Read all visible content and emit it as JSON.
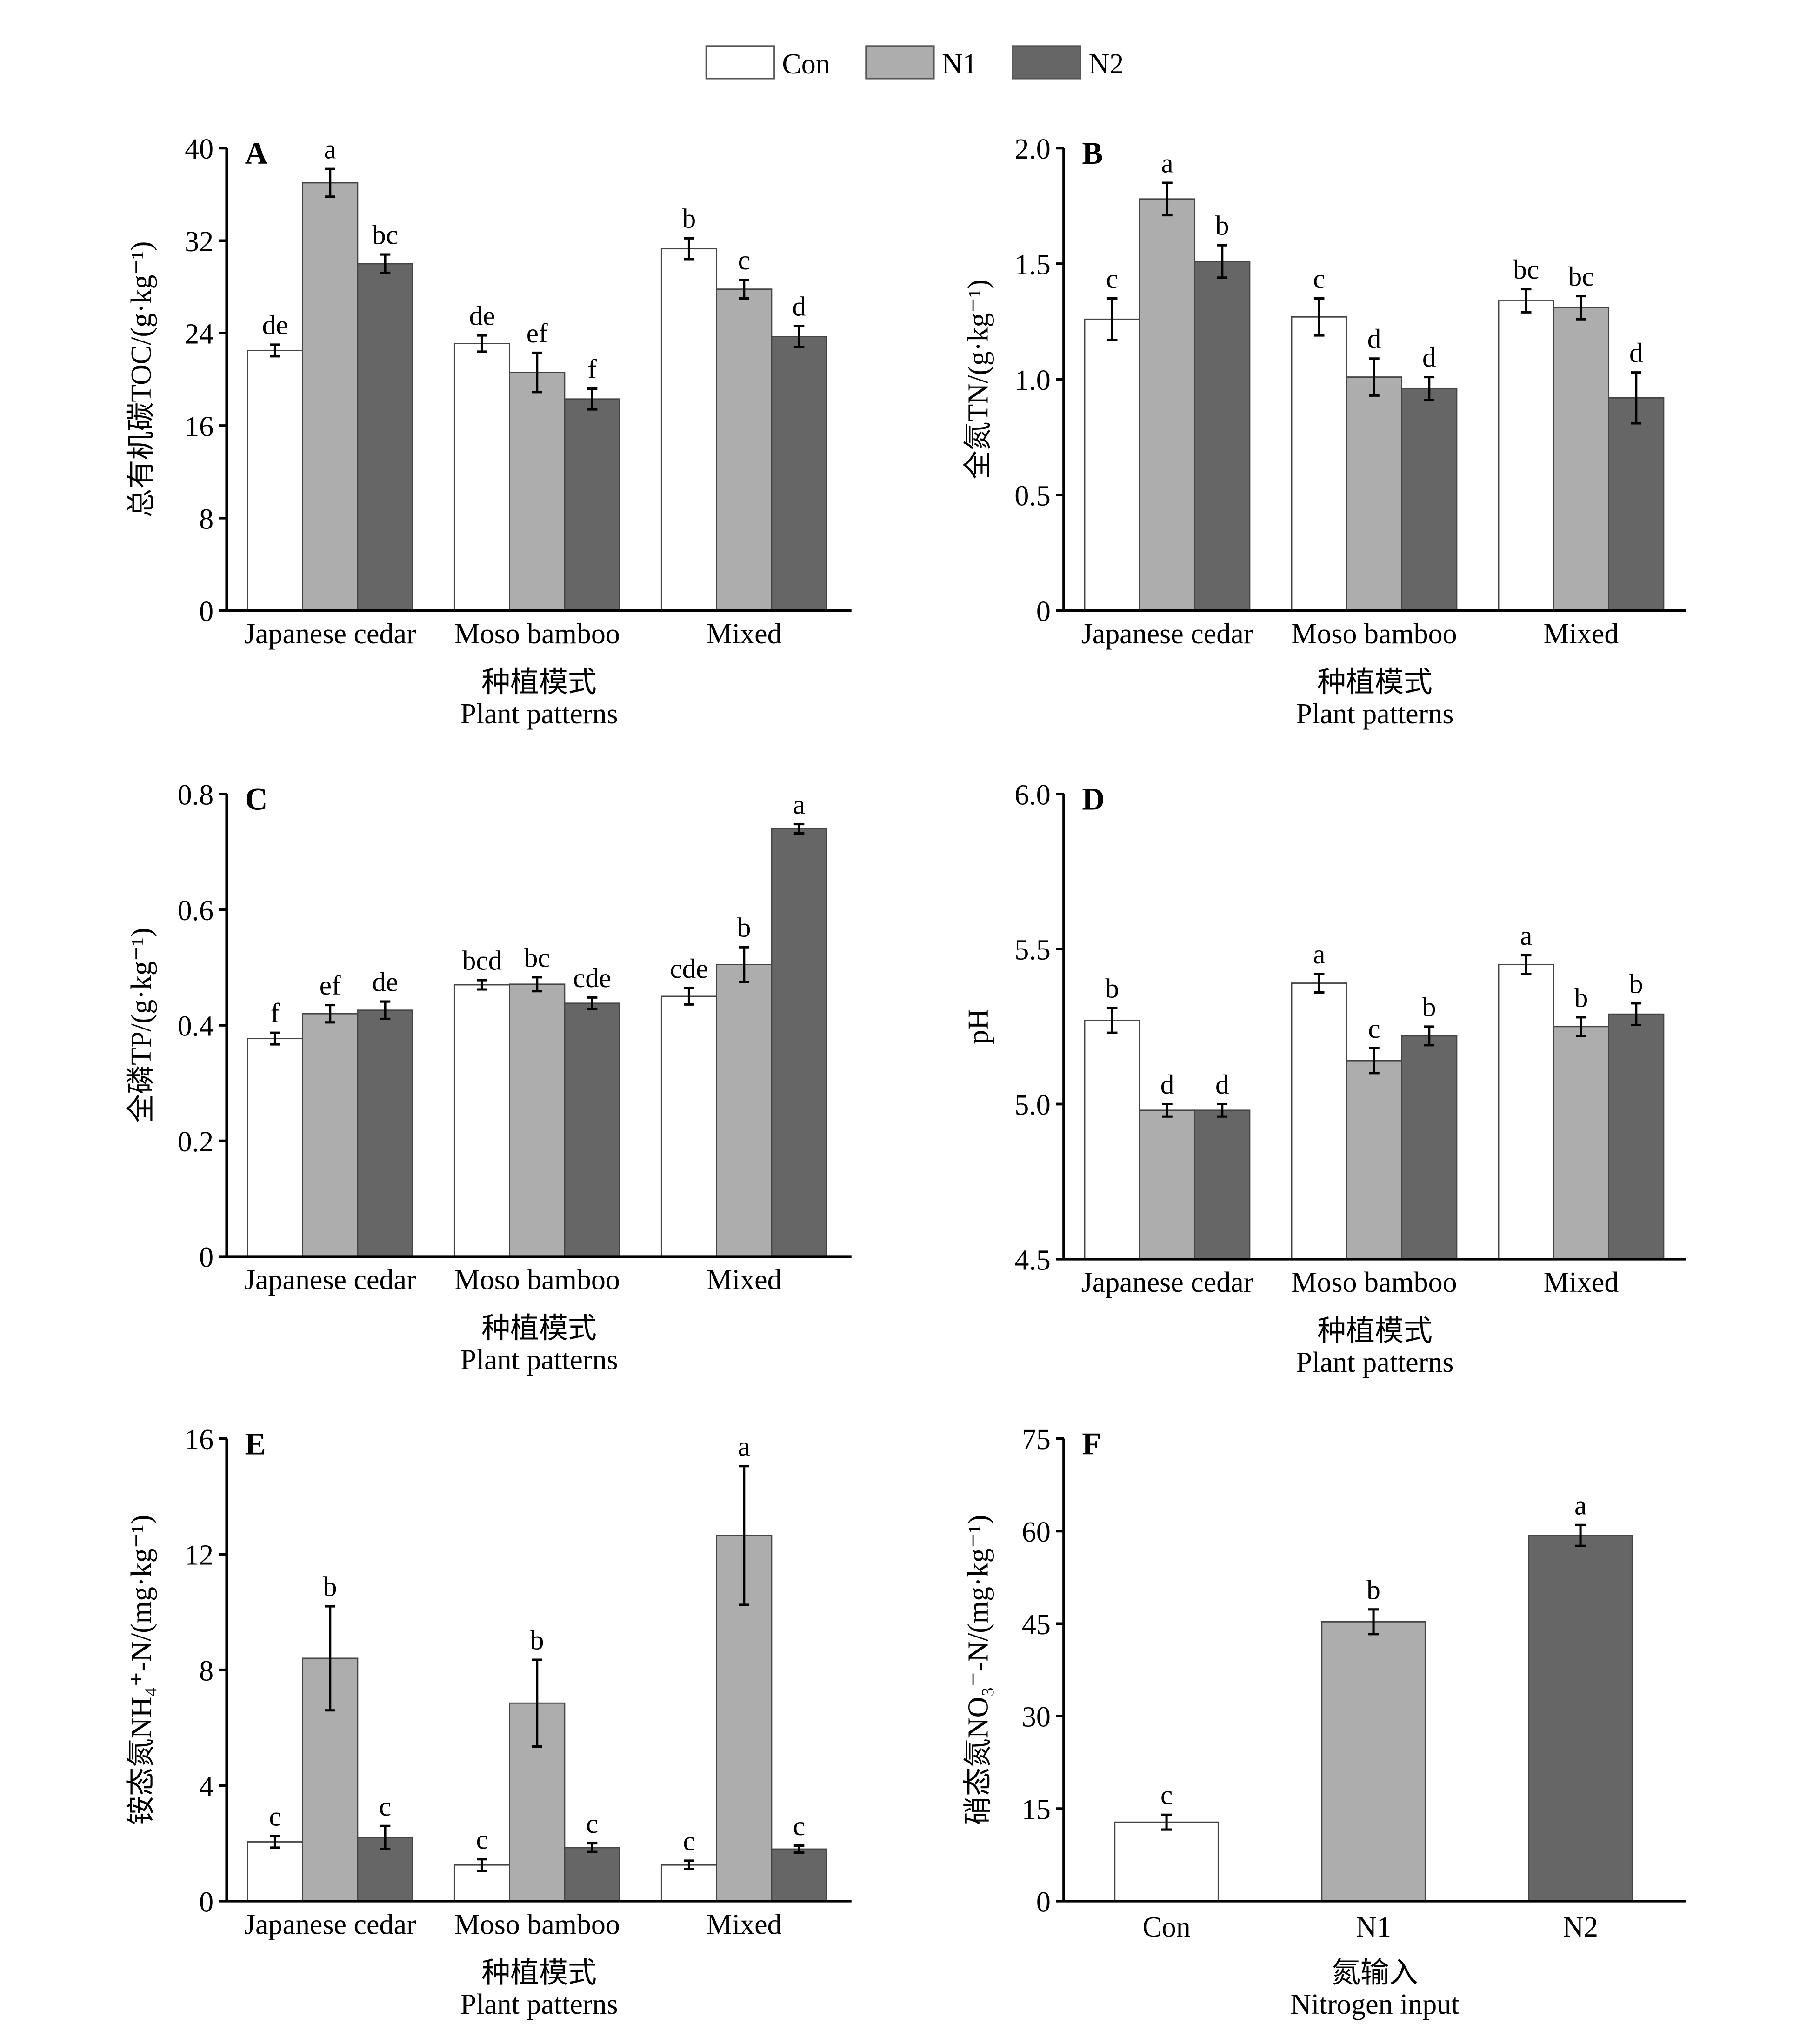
{
  "legend": {
    "items": [
      {
        "name": "Con",
        "color": "#ffffff"
      },
      {
        "name": "N1",
        "color": "#adadad"
      },
      {
        "name": "N2",
        "color": "#666666"
      }
    ],
    "placement": "top-center"
  },
  "chart_data": [
    {
      "type": "bar",
      "panel": "A",
      "ylabel": "总有机碳TOC/(g·kg⁻¹)",
      "xlabel_cn": "种植模式",
      "xlabel_en": "Plant patterns",
      "ylim": [
        0,
        40
      ],
      "yticks": [
        "0",
        "8",
        "16",
        "24",
        "32",
        "40"
      ],
      "categories": [
        "Japanese cedar",
        "Moso bamboo",
        "Mixed"
      ],
      "series": [
        {
          "name": "Con",
          "values": [
            22.5,
            23.1,
            31.3
          ],
          "errors": [
            0.5,
            0.7,
            0.9
          ],
          "letters": [
            "de",
            "de",
            "b"
          ]
        },
        {
          "name": "N1",
          "values": [
            37.0,
            20.6,
            27.8
          ],
          "errors": [
            1.2,
            1.7,
            0.8
          ],
          "letters": [
            "a",
            "ef",
            "c"
          ]
        },
        {
          "name": "N2",
          "values": [
            30.0,
            18.3,
            23.7
          ],
          "errors": [
            0.8,
            0.9,
            0.9
          ],
          "letters": [
            "bc",
            "f",
            "d"
          ]
        }
      ]
    },
    {
      "type": "bar",
      "panel": "B",
      "ylabel": "全氮TN/(g·kg⁻¹)",
      "xlabel_cn": "种植模式",
      "xlabel_en": "Plant patterns",
      "ylim": [
        0,
        2.0
      ],
      "yticks": [
        "0",
        "0.5",
        "1.0",
        "1.5",
        "2.0"
      ],
      "categories": [
        "Japanese cedar",
        "Moso bamboo",
        "Mixed"
      ],
      "series": [
        {
          "name": "Con",
          "values": [
            1.26,
            1.27,
            1.34
          ],
          "errors": [
            0.09,
            0.08,
            0.05
          ],
          "letters": [
            "c",
            "c",
            "bc"
          ]
        },
        {
          "name": "N1",
          "values": [
            1.78,
            1.01,
            1.31
          ],
          "errors": [
            0.07,
            0.08,
            0.05
          ],
          "letters": [
            "a",
            "d",
            "bc"
          ]
        },
        {
          "name": "N2",
          "values": [
            1.51,
            0.96,
            0.92
          ],
          "errors": [
            0.07,
            0.05,
            0.11
          ],
          "letters": [
            "b",
            "d",
            "d"
          ]
        }
      ]
    },
    {
      "type": "bar",
      "panel": "C",
      "ylabel": "全磷TP/(g·kg⁻¹)",
      "xlabel_cn": "种植模式",
      "xlabel_en": "Plant patterns",
      "ylim": [
        0,
        0.8
      ],
      "yticks": [
        "0",
        "0.2",
        "0.4",
        "0.6",
        "0.8"
      ],
      "categories": [
        "Japanese cedar",
        "Moso bamboo",
        "Mixed"
      ],
      "series": [
        {
          "name": "Con",
          "values": [
            0.377,
            0.47,
            0.45
          ],
          "errors": [
            0.01,
            0.008,
            0.014
          ],
          "letters": [
            "f",
            "bcd",
            "cde"
          ]
        },
        {
          "name": "N1",
          "values": [
            0.42,
            0.471,
            0.505
          ],
          "errors": [
            0.015,
            0.012,
            0.03
          ],
          "letters": [
            "ef",
            "bc",
            "b"
          ]
        },
        {
          "name": "N2",
          "values": [
            0.426,
            0.438,
            0.74
          ],
          "errors": [
            0.015,
            0.01,
            0.008
          ],
          "letters": [
            "de",
            "cde",
            "a"
          ]
        }
      ]
    },
    {
      "type": "bar",
      "panel": "D",
      "ylabel": "pH",
      "xlabel_cn": "种植模式",
      "xlabel_en": "Plant patterns",
      "ylim": [
        4.5,
        6.0
      ],
      "yticks": [
        "4.5",
        "5.0",
        "5.5",
        "6.0"
      ],
      "categories": [
        "Japanese cedar",
        "Moso bamboo",
        "Mixed"
      ],
      "series": [
        {
          "name": "Con",
          "values": [
            5.27,
            5.39,
            5.45
          ],
          "errors": [
            0.04,
            0.03,
            0.03
          ],
          "letters": [
            "b",
            "a",
            "a"
          ]
        },
        {
          "name": "N1",
          "values": [
            4.98,
            5.14,
            5.25
          ],
          "errors": [
            0.02,
            0.04,
            0.03
          ],
          "letters": [
            "d",
            "c",
            "b"
          ]
        },
        {
          "name": "N2",
          "values": [
            4.98,
            5.22,
            5.29
          ],
          "errors": [
            0.02,
            0.03,
            0.035
          ],
          "letters": [
            "d",
            "b",
            "b"
          ]
        }
      ]
    },
    {
      "type": "bar",
      "panel": "E",
      "ylabel": "铵态氮NH₄⁺-N/(mg·kg⁻¹)",
      "xlabel_cn": "种植模式",
      "xlabel_en": "Plant patterns",
      "ylim": [
        0,
        16
      ],
      "yticks": [
        "0",
        "4",
        "8",
        "12",
        "16"
      ],
      "categories": [
        "Japanese cedar",
        "Moso bamboo",
        "Mixed"
      ],
      "series": [
        {
          "name": "Con",
          "values": [
            2.05,
            1.25,
            1.25
          ],
          "errors": [
            0.2,
            0.2,
            0.15
          ],
          "letters": [
            "c",
            "c",
            "c"
          ]
        },
        {
          "name": "N1",
          "values": [
            8.4,
            6.85,
            12.65
          ],
          "errors": [
            1.8,
            1.5,
            2.4
          ],
          "letters": [
            "b",
            "b",
            "a"
          ]
        },
        {
          "name": "N2",
          "values": [
            2.2,
            1.85,
            1.8
          ],
          "errors": [
            0.4,
            0.15,
            0.12
          ],
          "letters": [
            "c",
            "c",
            "c"
          ]
        }
      ]
    },
    {
      "type": "bar",
      "panel": "F",
      "ylabel": "硝态氮NO₃⁻-N/(mg·kg⁻¹)",
      "xlabel_cn": "氮输入",
      "xlabel_en": "Nitrogen input",
      "ylim": [
        0,
        75
      ],
      "yticks": [
        "0",
        "15",
        "30",
        "45",
        "60",
        "75"
      ],
      "categories": [
        "Con",
        "N1",
        "N2"
      ],
      "values": [
        12.8,
        45.3,
        59.3
      ],
      "errors": [
        1.2,
        2.0,
        1.7
      ],
      "letters": [
        "c",
        "b",
        "a"
      ],
      "colors": [
        "#ffffff",
        "#adadad",
        "#666666"
      ]
    }
  ]
}
